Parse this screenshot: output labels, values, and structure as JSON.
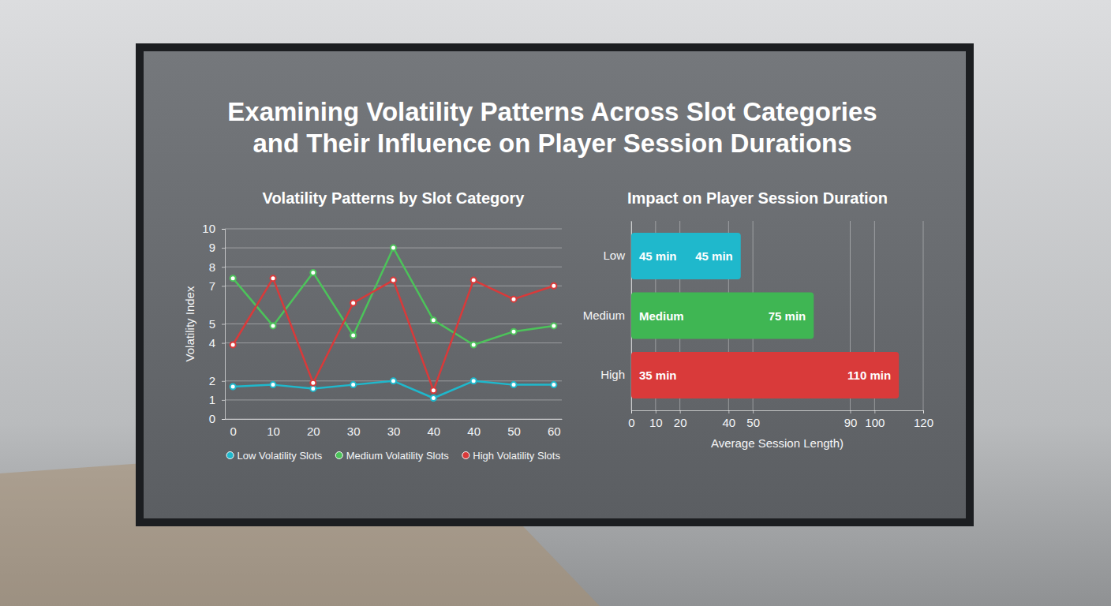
{
  "title": "Examining Volatility Patterns Across Slot Categories and Their Influence on Player Session Durations",
  "chart_data": [
    {
      "type": "line",
      "title": "Volatility Patterns by Slot Category",
      "y_label": "Volatility Index",
      "categories": [
        "0",
        "10",
        "20",
        "30",
        "30",
        "40",
        "40",
        "50",
        "60"
      ],
      "ylim": [
        0,
        10
      ],
      "yticks": [
        0,
        1,
        2,
        4,
        5,
        7,
        8,
        9,
        10
      ],
      "grid": true,
      "legend": "bottom",
      "marker": "circle",
      "series": [
        {
          "name": "Low Volatility Slots",
          "color": "#1fb8cc",
          "values": [
            1.7,
            1.8,
            1.6,
            1.8,
            2.0,
            1.1,
            2.0,
            1.8,
            1.8
          ]
        },
        {
          "name": "Medium Volatility Slots",
          "color": "#4cc35a",
          "values": [
            7.4,
            4.9,
            7.7,
            4.4,
            9.0,
            5.2,
            3.9,
            4.6,
            4.9
          ]
        },
        {
          "name": "High Volatility Slots",
          "color": "#d93a3a",
          "values": [
            3.9,
            7.4,
            1.9,
            6.1,
            7.3,
            1.5,
            7.3,
            6.3,
            7.0
          ]
        }
      ]
    },
    {
      "type": "bar",
      "orientation": "horizontal",
      "title": "Impact on Player Session Duration",
      "x_label": "Average Session Length)",
      "categories": [
        "Low",
        "Medium",
        "High"
      ],
      "values": [
        45,
        75,
        110
      ],
      "value_labels": [
        "45 min",
        "75 min",
        "110 min"
      ],
      "annotations": [
        "45 min",
        "Medium",
        "35 min"
      ],
      "colors": [
        "#1fb8cc",
        "#3fb653",
        "#d93a3a"
      ],
      "xlim": [
        0,
        120
      ],
      "xticks": [
        0,
        10,
        20,
        40,
        50,
        90,
        100,
        120
      ],
      "grid": true,
      "data_labels": true
    }
  ]
}
